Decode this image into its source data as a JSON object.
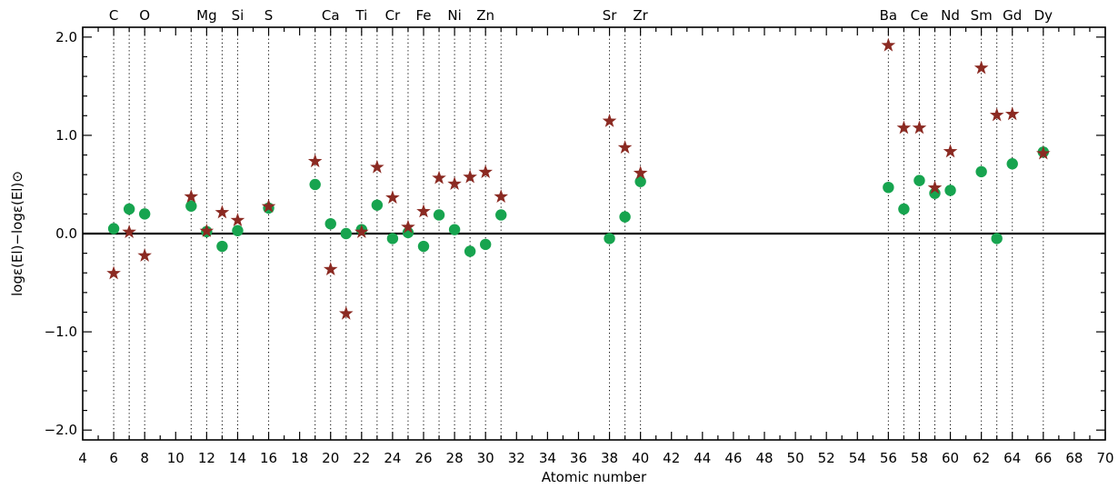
{
  "chart_data": {
    "type": "scatter",
    "xlabel": "Atomic number",
    "ylabel": "logε(El)−logε(El)⊙",
    "xlim": [
      4,
      70
    ],
    "ylim": [
      -2.1,
      2.1
    ],
    "x_ticks": [
      4,
      6,
      8,
      10,
      12,
      14,
      16,
      18,
      20,
      22,
      24,
      26,
      28,
      30,
      32,
      34,
      36,
      38,
      40,
      42,
      44,
      46,
      48,
      50,
      52,
      54,
      56,
      58,
      60,
      62,
      64,
      66,
      68,
      70
    ],
    "y_ticks": [
      2.0,
      1.0,
      0.0,
      -1.0,
      -2.0
    ],
    "y_tick_labels": [
      "2.0",
      "1.0",
      "0.0",
      "−1.0",
      "−2.0"
    ],
    "reference_line": 0.0,
    "grid": false,
    "element_markers": [
      {
        "z": 6,
        "symbol": "C"
      },
      {
        "z": 7,
        "symbol": ""
      },
      {
        "z": 8,
        "symbol": "O"
      },
      {
        "z": 11,
        "symbol": ""
      },
      {
        "z": 12,
        "symbol": "Mg"
      },
      {
        "z": 13,
        "symbol": ""
      },
      {
        "z": 14,
        "symbol": "Si"
      },
      {
        "z": 16,
        "symbol": "S"
      },
      {
        "z": 19,
        "symbol": ""
      },
      {
        "z": 20,
        "symbol": "Ca"
      },
      {
        "z": 21,
        "symbol": ""
      },
      {
        "z": 22,
        "symbol": "Ti"
      },
      {
        "z": 23,
        "symbol": ""
      },
      {
        "z": 24,
        "symbol": "Cr"
      },
      {
        "z": 25,
        "symbol": ""
      },
      {
        "z": 26,
        "symbol": "Fe"
      },
      {
        "z": 27,
        "symbol": ""
      },
      {
        "z": 28,
        "symbol": "Ni"
      },
      {
        "z": 29,
        "symbol": ""
      },
      {
        "z": 30,
        "symbol": "Zn"
      },
      {
        "z": 31,
        "symbol": ""
      },
      {
        "z": 38,
        "symbol": "Sr"
      },
      {
        "z": 39,
        "symbol": ""
      },
      {
        "z": 40,
        "symbol": "Zr"
      },
      {
        "z": 56,
        "symbol": "Ba"
      },
      {
        "z": 57,
        "symbol": ""
      },
      {
        "z": 58,
        "symbol": "Ce"
      },
      {
        "z": 59,
        "symbol": ""
      },
      {
        "z": 60,
        "symbol": "Nd"
      },
      {
        "z": 62,
        "symbol": "Sm"
      },
      {
        "z": 63,
        "symbol": ""
      },
      {
        "z": 64,
        "symbol": "Gd"
      },
      {
        "z": 66,
        "symbol": "Dy"
      }
    ],
    "series": [
      {
        "marker": "circle",
        "color": "#17a44f",
        "points": [
          [
            6,
            0.05
          ],
          [
            7,
            0.25
          ],
          [
            8,
            0.2
          ],
          [
            11,
            0.28
          ],
          [
            12,
            0.02
          ],
          [
            13,
            -0.13
          ],
          [
            14,
            0.03
          ],
          [
            16,
            0.26
          ],
          [
            19,
            0.5
          ],
          [
            20,
            0.1
          ],
          [
            21,
            0.0
          ],
          [
            22,
            0.04
          ],
          [
            23,
            0.29
          ],
          [
            24,
            -0.05
          ],
          [
            25,
            0.01
          ],
          [
            26,
            -0.13
          ],
          [
            27,
            0.19
          ],
          [
            28,
            0.04
          ],
          [
            29,
            -0.18
          ],
          [
            30,
            -0.11
          ],
          [
            31,
            0.19
          ],
          [
            38,
            -0.05
          ],
          [
            39,
            0.17
          ],
          [
            40,
            0.53
          ],
          [
            56,
            0.47
          ],
          [
            57,
            0.25
          ],
          [
            58,
            0.54
          ],
          [
            59,
            0.41
          ],
          [
            60,
            0.44
          ],
          [
            62,
            0.63
          ],
          [
            63,
            -0.05
          ],
          [
            64,
            0.71
          ],
          [
            66,
            0.83
          ]
        ]
      },
      {
        "marker": "star",
        "color": "#8b2a22",
        "points": [
          [
            6,
            -0.4
          ],
          [
            7,
            0.02
          ],
          [
            8,
            -0.22
          ],
          [
            11,
            0.38
          ],
          [
            12,
            0.03
          ],
          [
            13,
            0.22
          ],
          [
            14,
            0.14
          ],
          [
            16,
            0.28
          ],
          [
            19,
            0.74
          ],
          [
            20,
            -0.36
          ],
          [
            21,
            -0.81
          ],
          [
            22,
            0.02
          ],
          [
            23,
            0.68
          ],
          [
            24,
            0.37
          ],
          [
            25,
            0.07
          ],
          [
            26,
            0.23
          ],
          [
            27,
            0.57
          ],
          [
            28,
            0.51
          ],
          [
            29,
            0.58
          ],
          [
            30,
            0.63
          ],
          [
            31,
            0.38
          ],
          [
            38,
            1.15
          ],
          [
            39,
            0.88
          ],
          [
            40,
            0.62
          ],
          [
            56,
            1.92
          ],
          [
            57,
            1.08
          ],
          [
            58,
            1.08
          ],
          [
            59,
            0.47
          ],
          [
            60,
            0.84
          ],
          [
            62,
            1.69
          ],
          [
            63,
            1.21
          ],
          [
            64,
            1.22
          ],
          [
            66,
            0.82
          ]
        ]
      }
    ]
  }
}
